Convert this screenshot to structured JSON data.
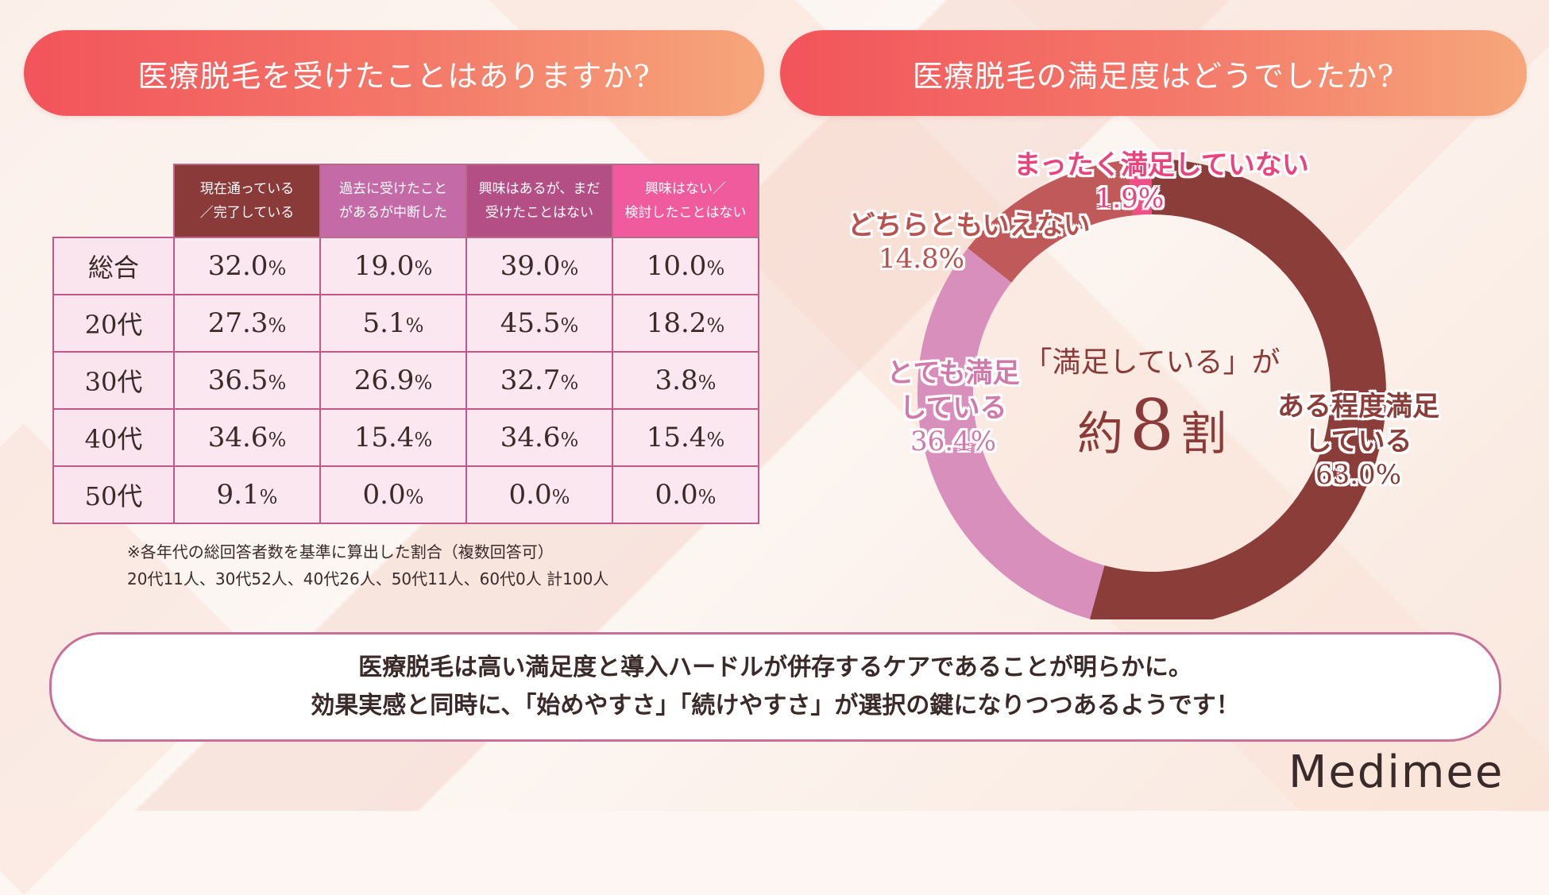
{
  "colors": {
    "header_gradient": [
      "#f2545b",
      "#f6a77a"
    ],
    "col_heads": [
      "#8b3a3a",
      "#c46aa6",
      "#b44f86",
      "#ef5b9c"
    ],
    "donut": [
      "#8b3d39",
      "#d98fbc",
      "#c05a5a",
      "#ef4f86"
    ],
    "label_colors": [
      "#8b3d39",
      "#cf7aa8",
      "#b8524f",
      "#e9447c"
    ]
  },
  "left_panel": {
    "header": "医療脱毛を受けたことはありますか?",
    "table": {
      "columns": [
        "現在通っている\n／完了している",
        "過去に受けたこと\nがあるが中断した",
        "興味はあるが、まだ\n受けたことはない",
        "興味はない／\n検討したことはない"
      ],
      "rows": [
        {
          "label": "総合",
          "values": [
            "32.0",
            "19.0",
            "39.0",
            "10.0"
          ]
        },
        {
          "label": "20代",
          "values": [
            "27.3",
            "5.1",
            "45.5",
            "18.2"
          ]
        },
        {
          "label": "30代",
          "values": [
            "36.5",
            "26.9",
            "32.7",
            "3.8"
          ]
        },
        {
          "label": "40代",
          "values": [
            "34.6",
            "15.4",
            "34.6",
            "15.4"
          ]
        },
        {
          "label": "50代",
          "values": [
            "9.1",
            "0.0",
            "0.0",
            "0.0"
          ]
        }
      ],
      "unit": "%"
    },
    "note_line1": "※各年代の総回答者数を基準に算出した割合（複数回答可）",
    "note_line2": "20代11人、30代52人、40代26人、50代11人、60代0人 計100人"
  },
  "right_panel": {
    "header": "医療脱毛の満足度はどうでしたか?",
    "center_line1": "「満足している」が",
    "center_line2_prefix": "約",
    "center_line2_num": "8",
    "center_line2_suffix": "割"
  },
  "chart_data": [
    {
      "type": "table",
      "title": "医療脱毛を受けたことはありますか?",
      "columns": [
        "現在通っている／完了している",
        "過去に受けたことがあるが中断した",
        "興味はあるが、まだ受けたことはない",
        "興味はない／検討したことはない"
      ],
      "rows": [
        "総合",
        "20代",
        "30代",
        "40代",
        "50代"
      ],
      "values": [
        [
          32.0,
          19.0,
          39.0,
          10.0
        ],
        [
          27.3,
          5.1,
          45.5,
          18.2
        ],
        [
          36.5,
          26.9,
          32.7,
          3.8
        ],
        [
          34.6,
          15.4,
          34.6,
          15.4
        ],
        [
          9.1,
          0.0,
          0.0,
          0.0
        ]
      ],
      "unit": "%"
    },
    {
      "type": "pie",
      "title": "医療脱毛の満足度はどうでしたか?",
      "donut": true,
      "categories": [
        "ある程度満足している",
        "とても満足している",
        "どちらともいえない",
        "まったく満足していない"
      ],
      "values": [
        63.0,
        36.4,
        14.8,
        1.9
      ],
      "value_labels": [
        "63.0%",
        "36.4%",
        "14.8%",
        "1.9%"
      ]
    }
  ],
  "donut_labels": [
    {
      "text_lines": [
        "ある程度満足",
        "している"
      ],
      "value": "63.0%"
    },
    {
      "text_lines": [
        "とても満足",
        "している"
      ],
      "value": "36.4%"
    },
    {
      "text_lines": [
        "どちらともいえない"
      ],
      "value": "14.8%"
    },
    {
      "text_lines": [
        "まったく満足していない"
      ],
      "value": "1.9%"
    }
  ],
  "summary": {
    "line1": "医療脱毛は高い満足度と導入ハードルが併存するケアであることが明らかに。",
    "line2": "効果実感と同時に、「始めやすさ」「続けやすさ」が選択の鍵になりつつあるようです！"
  },
  "brand": "Medimee"
}
